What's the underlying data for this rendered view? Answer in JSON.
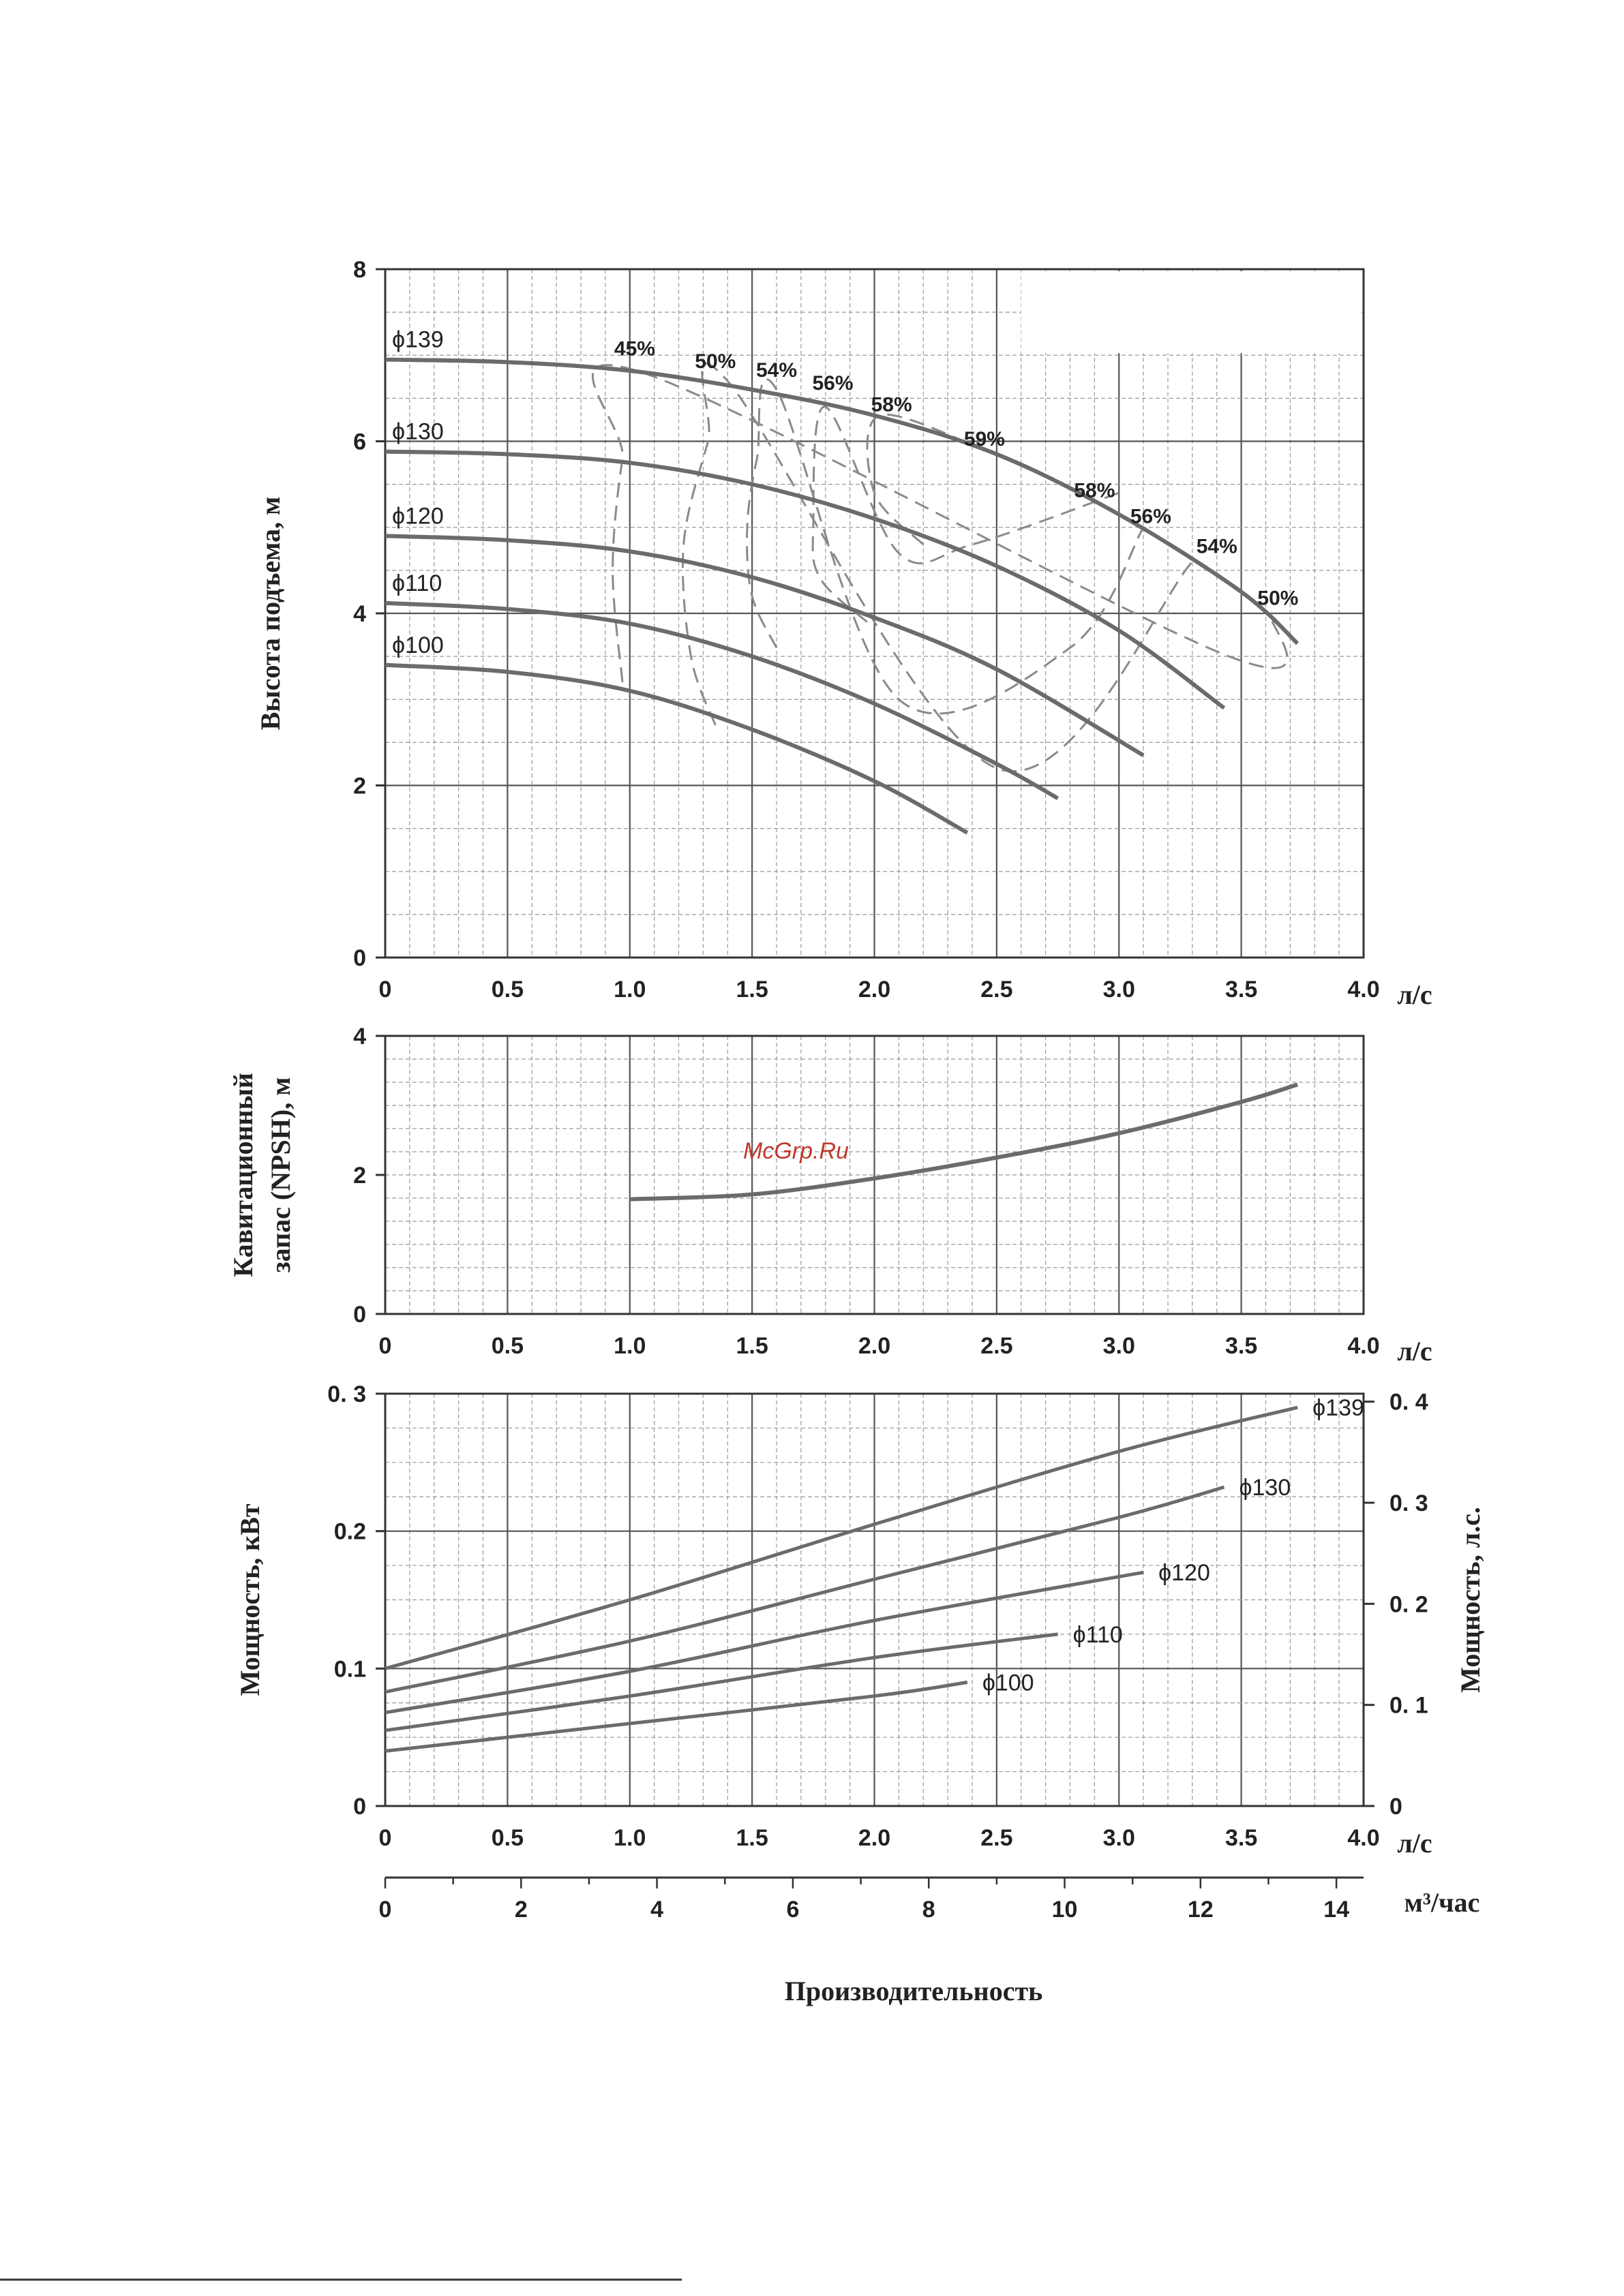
{
  "watermark": "McGrp.Ru",
  "colors": {
    "curve": "#6b6b6b",
    "dashed": "#8a8a8a",
    "grid_minor": "#9a9a9a",
    "grid_major": "#555555",
    "frame": "#333333",
    "watermark": "#c0392b"
  },
  "chart_data": [
    {
      "type": "line",
      "name": "head",
      "xlabel": "л/с",
      "ylabel": "Высота подъема, м",
      "xlim": [
        0,
        4.0
      ],
      "ylim": [
        0,
        8
      ],
      "xticks": [
        "0",
        "0.5",
        "1.0",
        "1.5",
        "2.0",
        "2.5",
        "3.0",
        "3.5",
        "4.0"
      ],
      "yticks": [
        "0",
        "2",
        "4",
        "6",
        "8"
      ],
      "grid": true,
      "series": [
        {
          "name": "ϕ139",
          "x": [
            0,
            0.5,
            1.0,
            1.5,
            2.0,
            2.5,
            3.0,
            3.5,
            3.73
          ],
          "y": [
            6.95,
            6.92,
            6.82,
            6.6,
            6.3,
            5.85,
            5.15,
            4.25,
            3.65
          ]
        },
        {
          "name": "ϕ130",
          "x": [
            0,
            0.5,
            1.0,
            1.5,
            2.0,
            2.5,
            3.0,
            3.43
          ],
          "y": [
            5.88,
            5.85,
            5.75,
            5.5,
            5.1,
            4.55,
            3.8,
            2.9
          ]
        },
        {
          "name": "ϕ120",
          "x": [
            0,
            0.5,
            1.0,
            1.5,
            2.0,
            2.5,
            3.1
          ],
          "y": [
            4.9,
            4.85,
            4.72,
            4.42,
            3.95,
            3.35,
            2.35
          ]
        },
        {
          "name": "ϕ110",
          "x": [
            0,
            0.5,
            1.0,
            1.5,
            2.0,
            2.5,
            2.75
          ],
          "y": [
            4.12,
            4.05,
            3.88,
            3.5,
            2.95,
            2.25,
            1.85
          ]
        },
        {
          "name": "ϕ100",
          "x": [
            0,
            0.5,
            1.0,
            1.5,
            2.0,
            2.38
          ],
          "y": [
            3.4,
            3.32,
            3.1,
            2.65,
            2.05,
            1.45
          ]
        }
      ],
      "efficiency_curves": [
        {
          "left_label": "45%",
          "right_label": "50%",
          "x": [
            0.97,
            0.93,
            0.97,
            1.05,
            3.45,
            3.62
          ],
          "y": [
            3.2,
            4.5,
            5.8,
            6.8,
            3.5,
            4.0
          ]
        },
        {
          "left_label": "50%",
          "right_label": "54%",
          "x": [
            1.35,
            1.25,
            1.22,
            1.32,
            1.4,
            2.5,
            3.3
          ],
          "y": [
            2.7,
            3.5,
            4.8,
            6.0,
            6.7,
            2.2,
            4.6
          ]
        },
        {
          "left_label": "54%",
          "right_label": "56%",
          "x": [
            1.6,
            1.5,
            1.48,
            1.52,
            1.6,
            2.1,
            2.8,
            3.1
          ],
          "y": [
            3.6,
            4.2,
            5.0,
            5.8,
            6.6,
            3.0,
            3.6,
            5.0
          ]
        },
        {
          "left_label": "56%",
          "right_label": "58%",
          "x": [
            1.97,
            1.78,
            1.75,
            1.8,
            2.1,
            2.4,
            3.0
          ],
          "y": [
            3.9,
            4.4,
            5.0,
            6.4,
            4.7,
            4.8,
            5.4
          ]
        },
        {
          "left_label": "58%",
          "right_label": "59%",
          "x": [
            2.2,
            2.0,
            2.02,
            2.45
          ],
          "y": [
            4.8,
            5.4,
            6.3,
            5.9
          ]
        }
      ],
      "efficiency_labels": [
        {
          "text": "45%",
          "x": 1.02,
          "y": 7.0
        },
        {
          "text": "50%",
          "x": 1.35,
          "y": 6.85
        },
        {
          "text": "54%",
          "x": 1.6,
          "y": 6.75
        },
        {
          "text": "56%",
          "x": 1.83,
          "y": 6.6
        },
        {
          "text": "58%",
          "x": 2.07,
          "y": 6.35
        },
        {
          "text": "59%",
          "x": 2.45,
          "y": 5.95
        },
        {
          "text": "58%",
          "x": 2.9,
          "y": 5.35
        },
        {
          "text": "56%",
          "x": 3.13,
          "y": 5.05
        },
        {
          "text": "54%",
          "x": 3.4,
          "y": 4.7
        },
        {
          "text": "50%",
          "x": 3.65,
          "y": 4.1
        }
      ]
    },
    {
      "type": "line",
      "name": "npsh",
      "xlabel": "л/с",
      "ylabel": [
        "Кавитационный",
        "запас (NPSH), м"
      ],
      "xlim": [
        0,
        4.0
      ],
      "ylim": [
        0,
        4
      ],
      "xticks": [
        "0",
        "0.5",
        "1.0",
        "1.5",
        "2.0",
        "2.5",
        "3.0",
        "3.5",
        "4.0"
      ],
      "yticks": [
        "0",
        "2",
        "4"
      ],
      "grid": true,
      "series": [
        {
          "name": "",
          "x": [
            1.0,
            1.5,
            2.0,
            2.5,
            3.0,
            3.5,
            3.73
          ],
          "y": [
            1.65,
            1.72,
            1.95,
            2.25,
            2.6,
            3.05,
            3.3
          ]
        }
      ]
    },
    {
      "type": "line",
      "name": "power",
      "xlabel": "л/с",
      "x2label": "м³/час",
      "ylabel": "Мощность, кВт",
      "y2label": "Мощность, л.с.",
      "xlim": [
        0,
        4.0
      ],
      "ylim": [
        0,
        0.3
      ],
      "y2lim": [
        0,
        0.4
      ],
      "xticks": [
        "0",
        "0.5",
        "1.0",
        "1.5",
        "2.0",
        "2.5",
        "3.0",
        "3.5",
        "4.0"
      ],
      "yticks": [
        "0",
        "0.1",
        "0.2",
        "0. 3"
      ],
      "y2ticks": [
        "0",
        "0. 1",
        "0. 2",
        "0. 3",
        "0. 4"
      ],
      "x2ticks": [
        "0",
        "2",
        "4",
        "6",
        "8",
        "10",
        "12",
        "14"
      ],
      "x2lim": [
        0,
        14.4
      ],
      "grid": true,
      "series": [
        {
          "name": "ϕ139",
          "x": [
            0,
            1.0,
            2.0,
            3.0,
            3.73
          ],
          "y": [
            0.1,
            0.15,
            0.205,
            0.258,
            0.29
          ]
        },
        {
          "name": "ϕ130",
          "x": [
            0,
            1.0,
            2.0,
            3.0,
            3.43
          ],
          "y": [
            0.083,
            0.12,
            0.165,
            0.21,
            0.232
          ]
        },
        {
          "name": "ϕ120",
          "x": [
            0,
            1.0,
            2.0,
            3.1
          ],
          "y": [
            0.068,
            0.098,
            0.135,
            0.17
          ]
        },
        {
          "name": "ϕ110",
          "x": [
            0,
            1.0,
            2.0,
            2.75
          ],
          "y": [
            0.055,
            0.08,
            0.108,
            0.125
          ]
        },
        {
          "name": "ϕ100",
          "x": [
            0,
            1.0,
            2.0,
            2.38
          ],
          "y": [
            0.04,
            0.06,
            0.08,
            0.09
          ]
        }
      ]
    }
  ],
  "bottom_xlabel": "Производительность"
}
